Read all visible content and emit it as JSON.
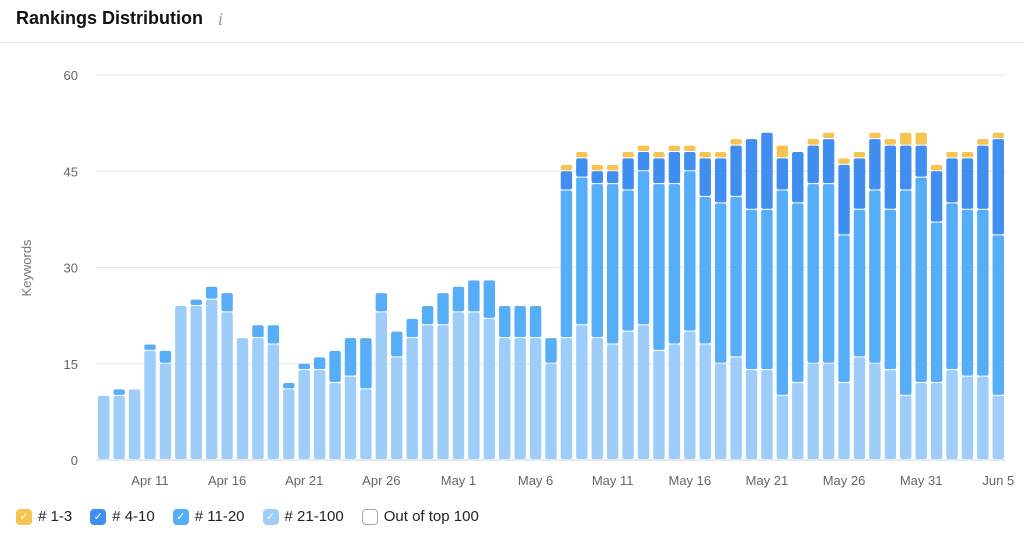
{
  "header": {
    "title": "Rankings Distribution",
    "info_icon": "info-icon"
  },
  "chart_data": {
    "type": "bar",
    "stacked": true,
    "ylabel": "Keywords",
    "ylim": [
      0,
      60
    ],
    "yticks": [
      "0",
      "15",
      "30",
      "45",
      "60"
    ],
    "grid": true,
    "legend_placement": "bottom-left",
    "xtick_labels": [
      "Apr 11",
      "Apr 16",
      "Apr 21",
      "Apr 26",
      "May 1",
      "May 6",
      "May 11",
      "May 16",
      "May 21",
      "May 26",
      "May 31",
      "Jun 5"
    ],
    "categories": [
      "Apr 8",
      "Apr 9",
      "Apr 10",
      "Apr 11",
      "Apr 12",
      "Apr 13",
      "Apr 14",
      "Apr 15",
      "Apr 16",
      "Apr 17",
      "Apr 18",
      "Apr 19",
      "Apr 20",
      "Apr 21",
      "Apr 22",
      "Apr 23",
      "Apr 24",
      "Apr 25",
      "Apr 26",
      "Apr 27",
      "Apr 28",
      "Apr 29",
      "Apr 30",
      "May 1",
      "May 2",
      "May 3",
      "May 4",
      "May 5",
      "May 6",
      "May 7",
      "May 8",
      "May 9",
      "May 10",
      "May 11",
      "May 12",
      "May 13",
      "May 14",
      "May 15",
      "May 16",
      "May 17",
      "May 18",
      "May 19",
      "May 20",
      "May 21",
      "May 22",
      "May 23",
      "May 24",
      "May 25",
      "May 26",
      "May 27",
      "May 28",
      "May 29",
      "May 30",
      "May 31",
      "Jun 1",
      "Jun 2",
      "Jun 3",
      "Jun 4",
      "Jun 5"
    ],
    "series": [
      {
        "name": "# 21-100",
        "color": "#9ecdfa",
        "checked": true,
        "values": [
          10,
          10,
          11,
          17,
          15,
          24,
          24,
          25,
          23,
          19,
          19,
          18,
          11,
          14,
          14,
          12,
          13,
          11,
          23,
          16,
          19,
          21,
          21,
          23,
          23,
          22,
          19,
          19,
          19,
          15,
          19,
          21,
          19,
          18,
          20,
          21,
          17,
          18,
          20,
          18,
          15,
          16,
          14,
          14,
          10,
          12,
          15,
          15,
          12,
          16,
          15,
          14,
          10,
          12,
          12,
          14,
          13,
          13,
          10
        ]
      },
      {
        "name": "# 11-20",
        "color": "#56aef8",
        "checked": true,
        "values": [
          0,
          1,
          0,
          1,
          2,
          0,
          1,
          2,
          3,
          0,
          2,
          3,
          1,
          1,
          2,
          5,
          6,
          8,
          3,
          4,
          3,
          3,
          5,
          4,
          5,
          6,
          5,
          5,
          5,
          4,
          23,
          23,
          24,
          25,
          22,
          24,
          26,
          25,
          25,
          23,
          25,
          25,
          25,
          25,
          32,
          28,
          28,
          28,
          23,
          23,
          27,
          25,
          32,
          32,
          25,
          26,
          26,
          26,
          25
        ]
      },
      {
        "name": "# 4-10",
        "color": "#3f8ef0",
        "checked": true,
        "values": [
          0,
          0,
          0,
          0,
          0,
          0,
          0,
          0,
          0,
          0,
          0,
          0,
          0,
          0,
          0,
          0,
          0,
          0,
          0,
          0,
          0,
          0,
          0,
          0,
          0,
          0,
          0,
          0,
          0,
          0,
          3,
          3,
          2,
          2,
          5,
          3,
          4,
          5,
          3,
          6,
          7,
          8,
          11,
          12,
          5,
          8,
          6,
          7,
          11,
          8,
          8,
          10,
          7,
          5,
          8,
          7,
          8,
          10,
          15
        ]
      },
      {
        "name": "# 1-3",
        "color": "#f5c451",
        "checked": true,
        "values": [
          0,
          0,
          0,
          0,
          0,
          0,
          0,
          0,
          0,
          0,
          0,
          0,
          0,
          0,
          0,
          0,
          0,
          0,
          0,
          0,
          0,
          0,
          0,
          0,
          0,
          0,
          0,
          0,
          0,
          0,
          1,
          1,
          1,
          1,
          1,
          1,
          1,
          1,
          1,
          1,
          1,
          1,
          0,
          0,
          2,
          0,
          1,
          1,
          1,
          1,
          1,
          1,
          2,
          2,
          1,
          1,
          1,
          1,
          1
        ]
      }
    ]
  },
  "legend": [
    {
      "label": "# 1-3",
      "color": "#f5c451",
      "checked": true
    },
    {
      "label": "# 4-10",
      "color": "#3f8ef0",
      "checked": true
    },
    {
      "label": "# 11-20",
      "color": "#56aef8",
      "checked": true
    },
    {
      "label": "# 21-100",
      "color": "#9ecdfa",
      "checked": true
    },
    {
      "label": "Out of top 100",
      "color": "#ffffff",
      "checked": false
    }
  ]
}
